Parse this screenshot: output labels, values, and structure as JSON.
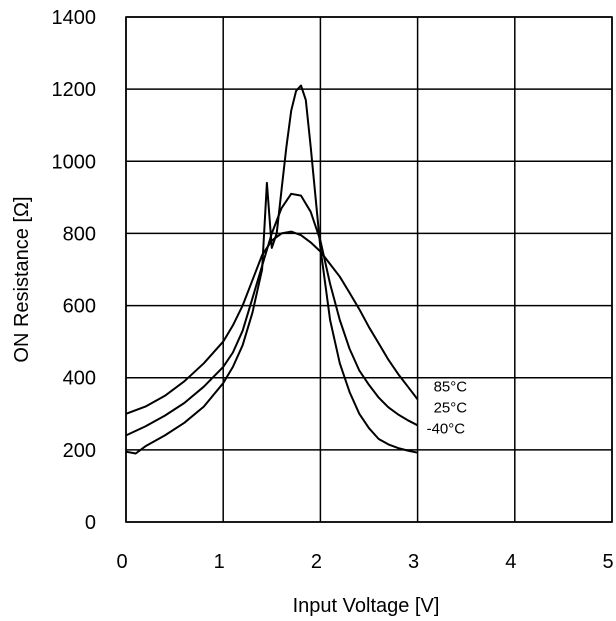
{
  "chart_data": {
    "type": "line",
    "title": "",
    "xlabel": "Input Voltage [V]",
    "ylabel": "ON Resistance [Ω]",
    "xlim": [
      0,
      5
    ],
    "ylim": [
      0,
      1400
    ],
    "x_ticks": [
      "0",
      "1",
      "2",
      "3",
      "4",
      "5"
    ],
    "y_ticks": [
      "0",
      "200",
      "400",
      "600",
      "800",
      "1000",
      "1200",
      "1400"
    ],
    "grid": true,
    "legend": "labels at right end of curves",
    "series": [
      {
        "name": "85°C",
        "x": [
          0.0,
          0.2,
          0.4,
          0.6,
          0.8,
          1.0,
          1.1,
          1.2,
          1.3,
          1.4,
          1.5,
          1.6,
          1.7,
          1.8,
          1.9,
          2.0,
          2.1,
          2.2,
          2.3,
          2.4,
          2.5,
          2.6,
          2.7,
          2.8,
          2.9,
          3.0
        ],
        "values": [
          300,
          320,
          350,
          390,
          440,
          500,
          545,
          600,
          670,
          740,
          780,
          800,
          805,
          795,
          775,
          750,
          715,
          680,
          635,
          590,
          540,
          495,
          450,
          410,
          375,
          340
        ]
      },
      {
        "name": "25°C",
        "x": [
          0.0,
          0.2,
          0.4,
          0.6,
          0.8,
          1.0,
          1.1,
          1.2,
          1.3,
          1.4,
          1.5,
          1.6,
          1.7,
          1.8,
          1.9,
          2.0,
          2.1,
          2.2,
          2.3,
          2.4,
          2.5,
          2.6,
          2.7,
          2.8,
          2.9,
          3.0
        ],
        "values": [
          240,
          265,
          295,
          330,
          375,
          430,
          470,
          530,
          620,
          710,
          800,
          870,
          910,
          905,
          860,
          780,
          660,
          560,
          480,
          420,
          380,
          345,
          318,
          298,
          282,
          268
        ]
      },
      {
        "name": "-40°C",
        "x": [
          0.0,
          0.1,
          0.2,
          0.4,
          0.6,
          0.8,
          1.0,
          1.1,
          1.2,
          1.3,
          1.4,
          1.45,
          1.5,
          1.55,
          1.6,
          1.65,
          1.7,
          1.75,
          1.8,
          1.85,
          1.9,
          2.0,
          2.1,
          2.2,
          2.3,
          2.4,
          2.5,
          2.6,
          2.7,
          2.8,
          2.9,
          3.0
        ],
        "values": [
          195,
          190,
          210,
          240,
          275,
          320,
          385,
          430,
          490,
          580,
          700,
          940,
          760,
          800,
          920,
          1040,
          1140,
          1195,
          1210,
          1170,
          1040,
          760,
          560,
          440,
          360,
          300,
          260,
          230,
          215,
          205,
          198,
          192
        ]
      }
    ]
  }
}
